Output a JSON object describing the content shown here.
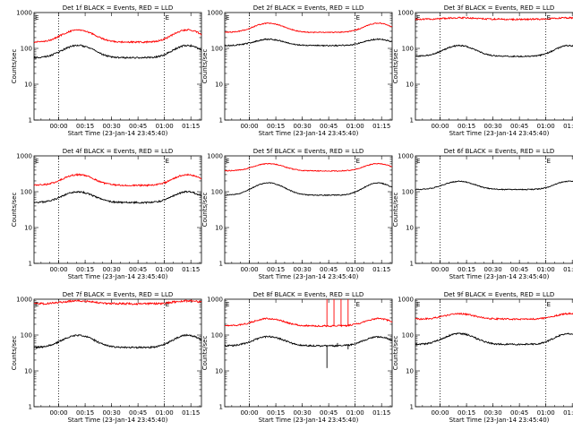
{
  "figure": {
    "ylabel": "Counts/sec",
    "xlabel": "Start Time (23-Jan-14 23:45:40)",
    "x_ticks": [
      "00:00",
      "00:15",
      "00:30",
      "00:45",
      "01:00",
      "01:15"
    ],
    "y_ticks": [
      "1",
      "10",
      "100",
      "1000"
    ],
    "marker_labels": [
      "E",
      "E"
    ]
  },
  "chart_data": [
    {
      "type": "line",
      "title": "Det 1f BLACK = Events, RED = LLD",
      "yscale": "log",
      "ylim": [
        1,
        1000
      ],
      "xlim_minutes": [
        0,
        95
      ],
      "grid": false,
      "series": [
        {
          "color": "#000000",
          "base": 55,
          "amp": 2.2,
          "noise": 0.05,
          "spike": null
        },
        {
          "color": "#ff0000",
          "base": 150,
          "amp": 2.2,
          "noise": 0.05,
          "spike": null
        }
      ]
    },
    {
      "type": "line",
      "title": "Det 2f BLACK = Events, RED = LLD",
      "yscale": "log",
      "ylim": [
        1,
        1000
      ],
      "xlim_minutes": [
        0,
        95
      ],
      "grid": false,
      "series": [
        {
          "color": "#000000",
          "base": 120,
          "amp": 1.5,
          "noise": 0.04,
          "spike": null
        },
        {
          "color": "#ff0000",
          "base": 280,
          "amp": 1.8,
          "noise": 0.03,
          "spike": null
        }
      ]
    },
    {
      "type": "line",
      "title": "Det 3f BLACK = Events, RED = LLD",
      "yscale": "log",
      "ylim": [
        1,
        1000
      ],
      "xlim_minutes": [
        0,
        95
      ],
      "grid": false,
      "series": [
        {
          "color": "#000000",
          "base": 60,
          "amp": 2.0,
          "noise": 0.04,
          "spike": null
        },
        {
          "color": "#ff0000",
          "base": 650,
          "amp": 1.1,
          "noise": 0.05,
          "spike": null
        }
      ]
    },
    {
      "type": "line",
      "title": "Det 4f BLACK = Events, RED = LLD",
      "yscale": "log",
      "ylim": [
        1,
        1000
      ],
      "xlim_minutes": [
        0,
        95
      ],
      "grid": false,
      "series": [
        {
          "color": "#000000",
          "base": 50,
          "amp": 2.0,
          "noise": 0.05,
          "spike": null
        },
        {
          "color": "#ff0000",
          "base": 150,
          "amp": 2.0,
          "noise": 0.05,
          "spike": null
        }
      ]
    },
    {
      "type": "line",
      "title": "Det 5f BLACK = Events, RED = LLD",
      "yscale": "log",
      "ylim": [
        1,
        1000
      ],
      "xlim_minutes": [
        0,
        95
      ],
      "grid": false,
      "series": [
        {
          "color": "#000000",
          "base": 80,
          "amp": 2.2,
          "noise": 0.03,
          "spike": null
        },
        {
          "color": "#ff0000",
          "base": 380,
          "amp": 1.6,
          "noise": 0.03,
          "spike": null
        }
      ]
    },
    {
      "type": "line",
      "title": "Det 6f BLACK = Events, RED = LLD",
      "yscale": "log",
      "ylim": [
        1,
        1000
      ],
      "xlim_minutes": [
        0,
        95
      ],
      "grid": false,
      "series": [
        {
          "color": "#000000",
          "base": 115,
          "amp": 1.7,
          "noise": 0.03,
          "spike": null
        }
      ]
    },
    {
      "type": "line",
      "title": "Det 7f BLACK = Events, RED = LLD",
      "yscale": "log",
      "ylim": [
        1,
        1000
      ],
      "xlim_minutes": [
        0,
        95
      ],
      "grid": false,
      "series": [
        {
          "color": "#000000",
          "base": 45,
          "amp": 2.2,
          "noise": 0.05,
          "spike": null
        },
        {
          "color": "#ff0000",
          "base": 750,
          "amp": 1.2,
          "noise": 0.06,
          "spike": null
        }
      ]
    },
    {
      "type": "line",
      "title": "Det 8f BLACK = Events, RED = LLD",
      "yscale": "log",
      "ylim": [
        1,
        1000
      ],
      "xlim_minutes": [
        0,
        95
      ],
      "grid": false,
      "series": [
        {
          "color": "#000000",
          "base": 50,
          "amp": 1.8,
          "noise": 0.05,
          "spike": {
            "x": [
              58,
              64,
              70
            ],
            "y": [
              12,
              60,
              40
            ]
          }
        },
        {
          "color": "#ff0000",
          "base": 180,
          "amp": 1.6,
          "noise": 0.05,
          "spike": {
            "x": [
              58,
              62,
              66,
              70
            ],
            "y": [
              1000,
              1000,
              1000,
              1000
            ]
          }
        }
      ]
    },
    {
      "type": "line",
      "title": "Det 9f BLACK = Events, RED = LLD",
      "yscale": "log",
      "ylim": [
        1,
        1000
      ],
      "xlim_minutes": [
        0,
        95
      ],
      "grid": false,
      "series": [
        {
          "color": "#000000",
          "base": 55,
          "amp": 2.0,
          "noise": 0.05,
          "spike": null
        },
        {
          "color": "#ff0000",
          "base": 280,
          "amp": 1.4,
          "noise": 0.05,
          "spike": null
        }
      ]
    }
  ]
}
